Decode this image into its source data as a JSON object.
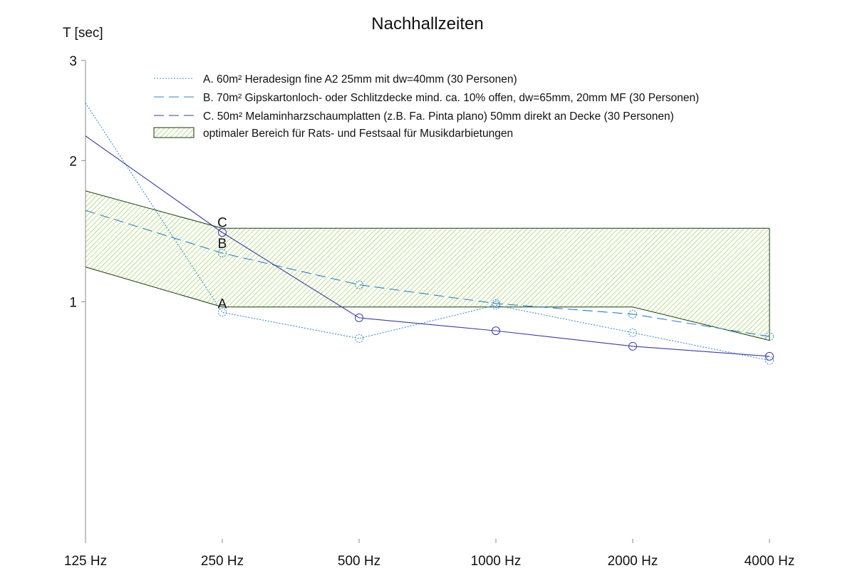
{
  "chart_data": {
    "type": "line",
    "title": "Nachhallzeiten",
    "ylabel": "T [sec]",
    "xlabel": "",
    "y_scale": "log(1+T)",
    "ylim": [
      0,
      3
    ],
    "yticks": [
      1,
      2,
      3
    ],
    "ytick_labels": [
      "1",
      "2",
      "3"
    ],
    "categories": [
      "125 Hz",
      "250 Hz",
      "500 Hz",
      "1000 Hz",
      "2000 Hz",
      "4000 Hz"
    ],
    "legend_position": "top-center",
    "series": [
      {
        "name": "A. 60m² Heradesign fine A2 25mm mit  dw=40mm (30 Personen)",
        "label": "A",
        "style": "dotted",
        "color": "#3d8fd4",
        "values": [
          2.54,
          0.94,
          0.8,
          0.98,
          0.83,
          0.69
        ]
      },
      {
        "name": "B. 70m² Gipskartonloch- oder Schlitzdecke mind. ca. 10% offen, dw=65mm, 20mm MF (30 Personen)",
        "label": "B",
        "style": "dashed",
        "color": "#2f7fc0",
        "values": [
          1.6,
          1.3,
          1.1,
          0.99,
          0.93,
          0.81
        ]
      },
      {
        "name": "C. 50m² Melaminharzschaumplatten (z.B. Fa. Pinta plano) 50mm direkt an Decke (30 Personen)",
        "label": "C",
        "style": "solid",
        "color": "#3b3b9e",
        "values": [
          2.22,
          1.44,
          0.91,
          0.84,
          0.76,
          0.71
        ]
      }
    ],
    "band": {
      "name": "optimaler Bereich für Rats- und Festsaal für Musikdarbietungen",
      "upper": [
        1.75,
        1.47,
        1.47,
        1.47,
        1.47,
        1.47
      ],
      "lower": [
        1.21,
        0.97,
        0.97,
        0.97,
        0.97,
        0.79
      ],
      "fill_color": "#8cc63f",
      "edge_color": "#1a3a10"
    }
  }
}
